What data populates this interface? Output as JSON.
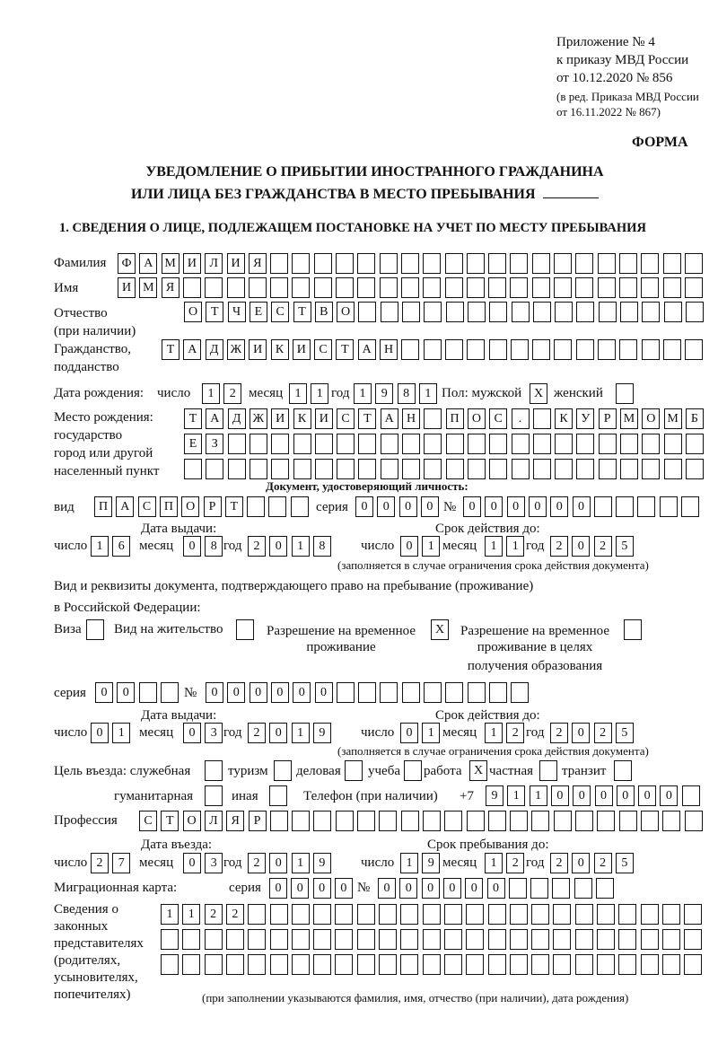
{
  "header": {
    "appendix": "Приложение № 4",
    "order": "к приказу МВД России",
    "order_date": "от 10.12.2020 № 856",
    "revision1": "(в ред. Приказа МВД России",
    "revision2": "от 16.11.2022 № 867)",
    "form_label": "ФОРМА",
    "title1": "УВЕДОМЛЕНИЕ О ПРИБЫТИИ ИНОСТРАННОГО ГРАЖДАНИНА",
    "title2": "ИЛИ ЛИЦА БЕЗ ГРАЖДАНСТВА В МЕСТО ПРЕБЫВАНИЯ",
    "section1": "1. СВЕДЕНИЯ О ЛИЦЕ, ПОДЛЕЖАЩЕМ ПОСТАНОВКЕ НА УЧЕТ ПО МЕСТУ ПРЕБЫВАНИЯ"
  },
  "labels": {
    "surname": "Фамилия",
    "name": "Имя",
    "patronymic1": "Отчество",
    "patronymic2": "(при наличии)",
    "citizenship1": "Гражданство,",
    "citizenship2": "подданство",
    "birth_date": "Дата рождения:",
    "day": "число",
    "month": "месяц",
    "year": "год",
    "sex": "Пол: мужской",
    "female": "женский",
    "birth_place1": "Место рождения:",
    "birth_place2": "государство",
    "birth_place3": "город или другой",
    "birth_place4": "населенный пункт",
    "id_doc": "Документ, удостоверяющий личность:",
    "kind": "вид",
    "series": "серия",
    "number": "№",
    "issue_date": "Дата выдачи:",
    "valid_until": "Срок действия до:",
    "validity_note": "(заполняется в случае ограничения срока действия документа)",
    "right_doc1": "Вид и реквизиты документа, подтверждающего право на пребывание (проживание)",
    "right_doc2": "в Российской Федерации:",
    "visa": "Виза",
    "residence": "Вид на жительство",
    "temp_permit1": "Разрешение на временное",
    "temp_permit2": "проживание",
    "edu_permit1": "Разрешение на временное",
    "edu_permit2": "проживание в целях",
    "edu_permit3": "получения образования",
    "purpose": "Цель въезда: служебная",
    "tourism": "туризм",
    "business": "деловая",
    "study": "учеба",
    "work": "работа",
    "private": "частная",
    "transit": "транзит",
    "humanitarian": "гуманитарная",
    "other": "иная",
    "phone": "Телефон (при наличии)",
    "phone_prefix": "+7",
    "profession": "Профессия",
    "entry_date": "Дата въезда:",
    "stay_until": "Срок пребывания до:",
    "migration_card": "Миграционная карта:",
    "reps1": "Сведения о",
    "reps2": "законных",
    "reps3": "представителях",
    "reps4": "(родителях,",
    "reps5": "усыновителях,",
    "reps6": "попечителях)",
    "reps_note": "(при заполнении указываются фамилия, имя, отчество (при наличии), дата рождения)"
  },
  "person": {
    "surname": "ФАМИЛИЯ",
    "name": "ИМЯ",
    "patronymic": "ОТЧЕСТВО",
    "citizenship": "ТАДЖИКИСТАН",
    "birth_day": "12",
    "birth_month": "11",
    "birth_year": "1981",
    "sex_male": "X",
    "sex_female": "",
    "birth_place_line1": "ТАДЖИКИСТАН ПОС. КУРМОМБ",
    "birth_place_line2": "ЕЗ",
    "birth_place_line3": ""
  },
  "id_document": {
    "kind": "ПАСПОРТ",
    "series": "0000",
    "number": "000000",
    "issue_day": "16",
    "issue_month": "08",
    "issue_year": "2018",
    "valid_day": "01",
    "valid_month": "11",
    "valid_year": "2025"
  },
  "right_document": {
    "visa": "",
    "residence": "",
    "temp_permit": "X",
    "edu_permit": "",
    "series": "00",
    "number": "000000",
    "issue_day": "01",
    "issue_month": "03",
    "issue_year": "2019",
    "valid_day": "01",
    "valid_month": "12",
    "valid_year": "2025"
  },
  "purpose": {
    "official": "",
    "tourism": "",
    "business": "",
    "study": "",
    "work": "X",
    "private": "",
    "transit": "",
    "humanitarian": "",
    "other": ""
  },
  "phone": "911000000",
  "profession": "СТОЛЯР",
  "stay": {
    "entry_day": "27",
    "entry_month": "03",
    "entry_year": "2019",
    "until_day": "19",
    "until_month": "12",
    "until_year": "2025"
  },
  "migration_card": {
    "series": "0000",
    "number": "000000"
  },
  "representatives": {
    "line1": "1122",
    "line2": "",
    "line3": ""
  }
}
